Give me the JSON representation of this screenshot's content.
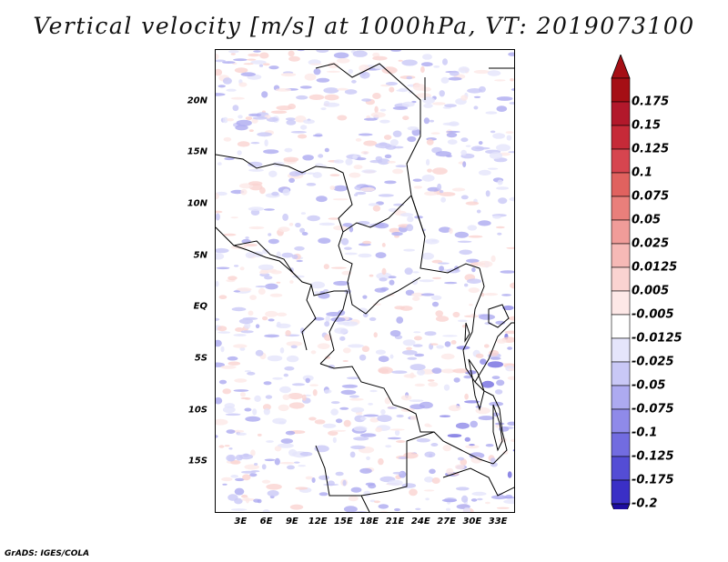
{
  "title": "Vertical velocity [m/s] at 1000hPa, VT: 2019073100",
  "credit": "GrADS: IGES/COLA",
  "map": {
    "projection": "latlon",
    "lon_range": [
      0,
      35
    ],
    "lat_range": [
      -20,
      25
    ],
    "y_ticks": [
      {
        "label": "20N",
        "lat": 20
      },
      {
        "label": "15N",
        "lat": 15
      },
      {
        "label": "10N",
        "lat": 10
      },
      {
        "label": "5N",
        "lat": 5
      },
      {
        "label": "EQ",
        "lat": 0
      },
      {
        "label": "5S",
        "lat": -5
      },
      {
        "label": "10S",
        "lat": -10
      },
      {
        "label": "15S",
        "lat": -15
      }
    ],
    "x_ticks": [
      {
        "label": "3E",
        "lon": 3
      },
      {
        "label": "6E",
        "lon": 6
      },
      {
        "label": "9E",
        "lon": 9
      },
      {
        "label": "12E",
        "lon": 12
      },
      {
        "label": "15E",
        "lon": 15
      },
      {
        "label": "18E",
        "lon": 18
      },
      {
        "label": "21E",
        "lon": 21
      },
      {
        "label": "24E",
        "lon": 24
      },
      {
        "label": "27E",
        "lon": 27
      },
      {
        "label": "30E",
        "lon": 30
      },
      {
        "label": "33E",
        "lon": 33
      }
    ],
    "colorbar": {
      "arrow_top_color": "#a50f15",
      "arrow_bottom_color": "#1d0da0",
      "levels": [
        {
          "label": "0.175",
          "color": "#b2182b"
        },
        {
          "label": "0.15",
          "color": "#c62a38"
        },
        {
          "label": "0.125",
          "color": "#d6454f"
        },
        {
          "label": "0.1",
          "color": "#e0625f"
        },
        {
          "label": "0.075",
          "color": "#e97f7b"
        },
        {
          "label": "0.05",
          "color": "#f09c99"
        },
        {
          "label": "0.025",
          "color": "#f6b9b6"
        },
        {
          "label": "0.0125",
          "color": "#fad3d1"
        },
        {
          "label": "0.005",
          "color": "#fde8e7"
        },
        {
          "label": "-0.005",
          "color": "#ffffff"
        },
        {
          "label": "-0.0125",
          "color": "#e5e5fb"
        },
        {
          "label": "-0.025",
          "color": "#c9c8f6"
        },
        {
          "label": "-0.05",
          "color": "#adaaf0"
        },
        {
          "label": "-0.075",
          "color": "#8f8ae9"
        },
        {
          "label": "-0.1",
          "color": "#726ce0"
        },
        {
          "label": "-0.125",
          "color": "#544dd5"
        },
        {
          "label": "-0.175",
          "color": "#3a2fc6"
        },
        {
          "label": "-0.2",
          "color": "#2a1db8"
        }
      ],
      "extra_bottom_color": "#1d0da0"
    }
  }
}
